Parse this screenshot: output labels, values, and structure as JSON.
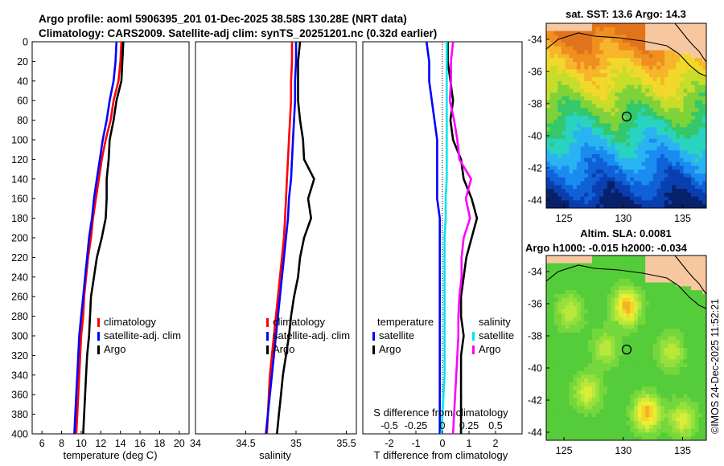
{
  "title_line1": "Argo profile: aoml 5906395_201 01-Dec-2025 38.58S 130.28E (NRT data)",
  "title_line2": "Climatology: CARS2009. Satellite-adj clim: synTS_20251201.nc (0.32d earlier)",
  "copyright": "©IMOS 24-Dec-2025 11:52:21",
  "colors": {
    "climatology": "#ff0000",
    "satellite": "#0000ff",
    "argo": "#000000",
    "sal_satellite": "#00e5ee",
    "sal_argo": "#ff00ff"
  },
  "chart_data": [
    {
      "type": "line",
      "name": "temperature",
      "xlabel": "temperature (deg C)",
      "ylabel": "",
      "xlim": [
        5,
        21
      ],
      "ylim": [
        400,
        0
      ],
      "xticks": [
        "6",
        "8",
        "10",
        "12",
        "14",
        "16",
        "18",
        "20"
      ],
      "yticks": [
        "0",
        "20",
        "40",
        "60",
        "80",
        "100",
        "120",
        "140",
        "160",
        "180",
        "200",
        "220",
        "240",
        "260",
        "280",
        "300",
        "320",
        "340",
        "360",
        "380",
        "400"
      ],
      "legend": [
        "climatology",
        "satellite-adj. clim",
        "Argo"
      ],
      "series": [
        {
          "name": "climatology",
          "color": "#ff0000",
          "x": [
            14.1,
            14.0,
            13.8,
            13.3,
            13.0,
            12.5,
            12.1,
            11.8,
            11.5,
            11.2,
            11.0,
            10.7,
            10.5,
            10.3,
            10.2,
            10.0,
            9.9,
            9.8,
            9.7,
            9.6,
            9.5
          ],
          "y": [
            0,
            20,
            40,
            60,
            80,
            100,
            120,
            140,
            160,
            180,
            200,
            220,
            240,
            260,
            280,
            300,
            320,
            340,
            360,
            380,
            400
          ]
        },
        {
          "name": "satellite-adj. clim",
          "color": "#0000ff",
          "x": [
            13.6,
            13.5,
            13.3,
            12.9,
            12.6,
            12.2,
            11.9,
            11.6,
            11.3,
            11.1,
            10.8,
            10.6,
            10.4,
            10.2,
            10.0,
            9.8,
            9.7,
            9.6,
            9.5,
            9.4,
            9.3
          ],
          "y": [
            0,
            20,
            40,
            60,
            80,
            100,
            120,
            140,
            160,
            180,
            200,
            220,
            240,
            260,
            280,
            300,
            320,
            340,
            360,
            380,
            400
          ]
        },
        {
          "name": "Argo",
          "color": "#000000",
          "x": [
            14.3,
            14.2,
            14.1,
            13.6,
            13.3,
            12.9,
            12.8,
            12.6,
            12.6,
            12.5,
            12.1,
            11.6,
            11.3,
            11.0,
            10.9,
            10.8,
            10.6,
            10.5,
            10.4,
            10.3,
            10.2
          ],
          "y": [
            0,
            20,
            40,
            60,
            80,
            100,
            120,
            140,
            160,
            180,
            200,
            220,
            240,
            260,
            280,
            300,
            320,
            340,
            360,
            380,
            400
          ]
        }
      ]
    },
    {
      "type": "line",
      "name": "salinity",
      "xlabel": "salinity",
      "ylabel": "",
      "xlim": [
        34,
        35.6
      ],
      "xticks": [
        "34",
        "34.5",
        "35",
        "35.5"
      ],
      "legend": [
        "climatology",
        "satellite-adj. clim",
        "Argo"
      ],
      "series": [
        {
          "name": "climatology",
          "color": "#ff0000",
          "x": [
            34.96,
            34.96,
            34.95,
            34.95,
            34.94,
            34.93,
            34.92,
            34.91,
            34.9,
            34.89,
            34.88,
            34.86,
            34.84,
            34.82,
            34.8,
            34.78,
            34.76,
            34.74,
            34.73,
            34.72,
            34.71
          ],
          "y": [
            0,
            20,
            40,
            60,
            80,
            100,
            120,
            140,
            160,
            180,
            200,
            220,
            240,
            260,
            280,
            300,
            320,
            340,
            360,
            380,
            400
          ]
        },
        {
          "name": "satellite-adj. clim",
          "color": "#0000ff",
          "x": [
            35.0,
            35.0,
            34.99,
            34.99,
            34.98,
            34.97,
            34.96,
            34.95,
            34.93,
            34.92,
            34.9,
            34.88,
            34.86,
            34.84,
            34.82,
            34.8,
            34.78,
            34.76,
            34.74,
            34.72,
            34.7
          ],
          "y": [
            0,
            20,
            40,
            60,
            80,
            100,
            120,
            140,
            160,
            180,
            200,
            220,
            240,
            260,
            280,
            300,
            320,
            340,
            360,
            380,
            400
          ]
        },
        {
          "name": "Argo",
          "color": "#000000",
          "x": [
            35.04,
            35.02,
            35.02,
            35.02,
            35.04,
            35.07,
            35.08,
            35.18,
            35.12,
            35.15,
            35.08,
            35.04,
            35.02,
            34.98,
            34.95,
            34.93,
            34.9,
            34.87,
            34.85,
            34.83,
            34.81
          ],
          "y": [
            0,
            20,
            40,
            60,
            80,
            100,
            120,
            140,
            160,
            180,
            200,
            220,
            240,
            260,
            280,
            300,
            320,
            340,
            360,
            380,
            400
          ]
        }
      ]
    },
    {
      "type": "line",
      "name": "differences",
      "xlabel": "T difference from climatology",
      "xlabel_top": "S difference from climatology",
      "xlim": [
        -3,
        3
      ],
      "xticks": [
        "-2",
        "-1",
        "0",
        "1",
        "2"
      ],
      "xticks_top": [
        "-0.5",
        "-0.25",
        "0",
        "0.25",
        "0.5"
      ],
      "legend_temperature": {
        "heading": "temperature",
        "items": [
          "satellite",
          "Argo"
        ]
      },
      "legend_salinity": {
        "heading": "salinity",
        "items": [
          "satellite",
          "Argo"
        ]
      },
      "series": [
        {
          "name": "temperature satellite",
          "color": "#0000ff",
          "x": [
            -0.6,
            -0.5,
            -0.5,
            -0.4,
            -0.3,
            -0.2,
            -0.2,
            -0.2,
            -0.2,
            -0.1,
            -0.1,
            -0.1,
            -0.1,
            -0.1,
            -0.1,
            -0.1,
            -0.1,
            -0.1,
            -0.1,
            -0.1,
            -0.1
          ],
          "y": [
            0,
            20,
            40,
            60,
            80,
            100,
            120,
            140,
            160,
            180,
            200,
            220,
            240,
            260,
            280,
            300,
            320,
            340,
            360,
            380,
            400
          ]
        },
        {
          "name": "temperature Argo",
          "color": "#000000",
          "x": [
            0.2,
            0.2,
            0.3,
            0.4,
            0.3,
            0.4,
            0.7,
            0.8,
            1.1,
            1.3,
            1.1,
            0.9,
            0.8,
            0.7,
            0.7,
            0.8,
            0.7,
            0.7,
            0.7,
            0.7,
            0.7
          ],
          "y": [
            0,
            20,
            40,
            60,
            80,
            100,
            120,
            140,
            160,
            180,
            200,
            220,
            240,
            260,
            280,
            300,
            320,
            340,
            360,
            380,
            400
          ]
        },
        {
          "name": "salinity satellite",
          "color": "#00e5ee",
          "x": [
            0.04,
            0.04,
            0.04,
            0.04,
            0.04,
            0.04,
            0.04,
            0.04,
            0.03,
            0.03,
            0.02,
            0.02,
            0.02,
            0.02,
            0.02,
            0.02,
            0.02,
            0.02,
            0.01,
            0.0,
            -0.01
          ],
          "y": [
            0,
            20,
            40,
            60,
            80,
            100,
            120,
            140,
            160,
            180,
            200,
            220,
            240,
            260,
            280,
            300,
            320,
            340,
            360,
            380,
            400
          ]
        },
        {
          "name": "salinity Argo",
          "color": "#ff00ff",
          "x": [
            0.1,
            0.08,
            0.08,
            0.07,
            0.11,
            0.14,
            0.16,
            0.27,
            0.22,
            0.26,
            0.2,
            0.18,
            0.18,
            0.16,
            0.15,
            0.15,
            0.14,
            0.13,
            0.12,
            0.11,
            0.1
          ],
          "y": [
            0,
            20,
            40,
            60,
            80,
            100,
            120,
            140,
            160,
            180,
            200,
            220,
            240,
            260,
            280,
            300,
            320,
            340,
            360,
            380,
            400
          ]
        }
      ]
    },
    {
      "type": "heatmap",
      "name": "sst_map",
      "title": "sat. SST: 13.6 Argo: 14.3",
      "xticks": [
        "125",
        "130",
        "135"
      ],
      "yticks": [
        "-34",
        "-36",
        "-38",
        "-40",
        "-42",
        "-44"
      ],
      "xlim": [
        123.5,
        137
      ],
      "ylim": [
        -44.5,
        -33
      ]
    },
    {
      "type": "heatmap",
      "name": "sla_map",
      "title_line1": "Altim. SLA: 0.0081",
      "title_line2": "Argo h1000: -0.015 h2000: -0.034",
      "xticks": [
        "125",
        "130",
        "135"
      ],
      "yticks": [
        "-34",
        "-36",
        "-38",
        "-40",
        "-42",
        "-44"
      ],
      "xlim": [
        123.5,
        137
      ],
      "ylim": [
        -44.5,
        -33
      ]
    }
  ]
}
